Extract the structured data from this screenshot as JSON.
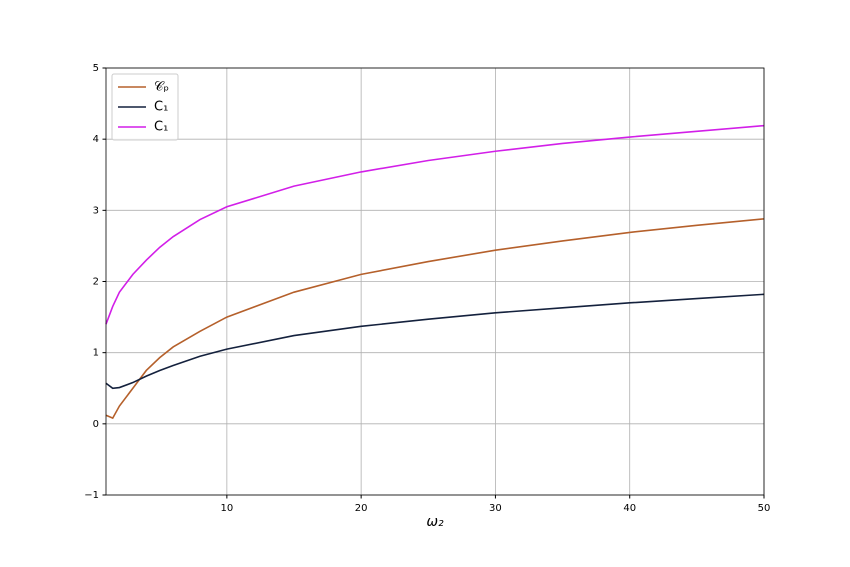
{
  "chart_data": {
    "type": "line",
    "xlabel": "ω₂",
    "x": [
      1,
      1.5,
      2,
      3,
      4,
      5,
      6,
      8,
      10,
      15,
      20,
      25,
      30,
      35,
      40,
      45,
      50
    ],
    "series": [
      {
        "name": "𝒞ₚ",
        "color": "#b5602b",
        "values": [
          0.12,
          0.08,
          0.25,
          0.5,
          0.75,
          0.93,
          1.08,
          1.3,
          1.5,
          1.85,
          2.1,
          2.28,
          2.44,
          2.57,
          2.69,
          2.79,
          2.88
        ]
      },
      {
        "name": "C₁",
        "color": "#14213d",
        "values": [
          0.57,
          0.5,
          0.51,
          0.58,
          0.67,
          0.75,
          0.82,
          0.95,
          1.05,
          1.24,
          1.37,
          1.47,
          1.56,
          1.63,
          1.7,
          1.76,
          1.82
        ]
      },
      {
        "name": "C₁",
        "color": "#d21fe8",
        "values": [
          1.4,
          1.65,
          1.85,
          2.1,
          2.3,
          2.48,
          2.63,
          2.87,
          3.05,
          3.34,
          3.54,
          3.7,
          3.83,
          3.94,
          4.03,
          4.11,
          4.19
        ]
      }
    ],
    "xlim": [
      1,
      50
    ],
    "xticks": [
      10,
      20,
      30,
      40,
      50
    ],
    "ylim": [
      -1,
      5
    ],
    "yticks": [
      {
        "value": -1,
        "label": "−1"
      },
      0,
      1,
      2,
      3,
      4,
      5
    ],
    "grid": true,
    "legend": "upper left"
  }
}
